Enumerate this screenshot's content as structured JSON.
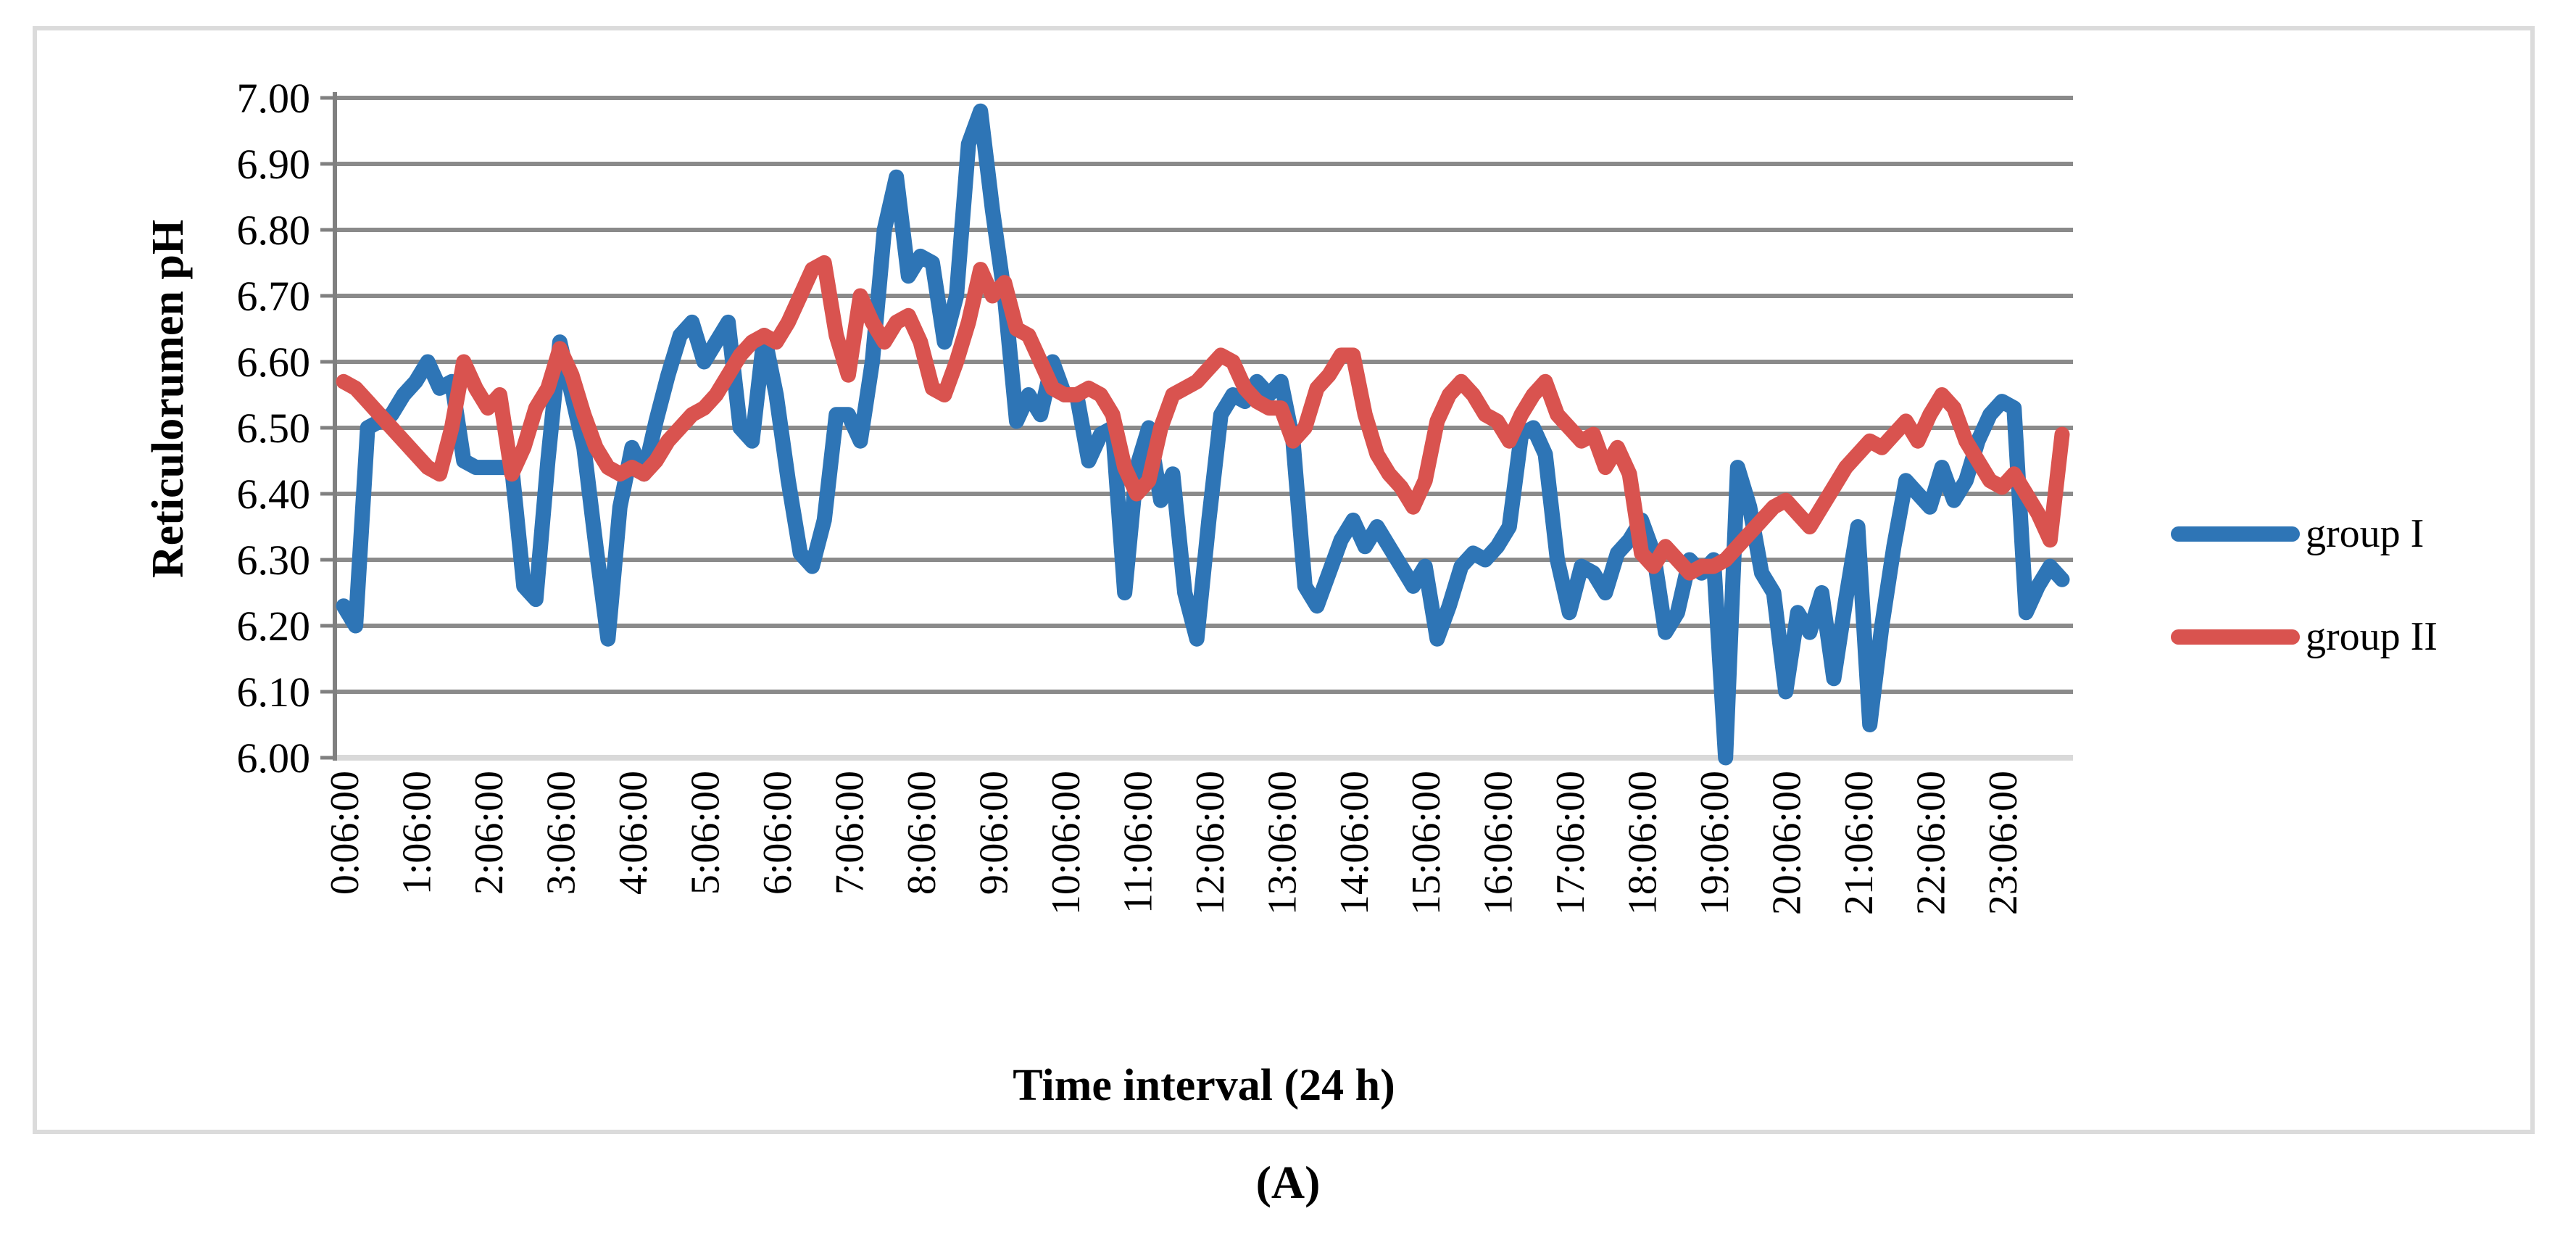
{
  "figure": {
    "caption": "(A)",
    "frame_color": "#dbdbdb",
    "background": "#ffffff"
  },
  "chart_data": {
    "type": "line",
    "title": "",
    "xlabel": "Time interval (24 h)",
    "ylabel": "Reticulorumen pH",
    "ylim": [
      6.0,
      7.0
    ],
    "ytick_step": 0.1,
    "grid": "horizontal",
    "legend_position": "right-middle",
    "axis_colors": {
      "gridline": "#8a8a8a",
      "axis": "#808080",
      "baseline": "#d9d9d9"
    },
    "ytick_labels": [
      "7.00",
      "6.90",
      "6.80",
      "6.70",
      "6.60",
      "6.50",
      "6.40",
      "6.30",
      "6.20",
      "6.10",
      "6.00"
    ],
    "xtick_labels": [
      "0:06:00",
      "1:06:00",
      "2:06:00",
      "3:06:00",
      "4:06:00",
      "5:06:00",
      "6:06:00",
      "7:06:00",
      "8:06:00",
      "9:06:00",
      "10:06:00",
      "11:06:00",
      "12:06:00",
      "13:06:00",
      "14:06:00",
      "15:06:00",
      "16:06:00",
      "17:06:00",
      "18:06:00",
      "19:06:00",
      "20:06:00",
      "21:06:00",
      "22:06:00",
      "23:06:00"
    ],
    "points_per_hour": 6,
    "x_interval_minutes": 10,
    "series": [
      {
        "name": "group I",
        "color": "#2e75b6",
        "values": [
          6.23,
          6.2,
          6.5,
          6.51,
          6.52,
          6.55,
          6.57,
          6.6,
          6.56,
          6.57,
          6.45,
          6.44,
          6.44,
          6.44,
          6.44,
          6.26,
          6.24,
          6.45,
          6.63,
          6.55,
          6.47,
          6.32,
          6.18,
          6.38,
          6.47,
          6.43,
          6.51,
          6.58,
          6.64,
          6.66,
          6.6,
          6.63,
          6.66,
          6.5,
          6.48,
          6.64,
          6.55,
          6.42,
          6.31,
          6.29,
          6.36,
          6.52,
          6.52,
          6.48,
          6.6,
          6.8,
          6.88,
          6.73,
          6.76,
          6.75,
          6.63,
          6.7,
          6.93,
          6.98,
          6.83,
          6.7,
          6.51,
          6.55,
          6.52,
          6.6,
          6.55,
          6.55,
          6.45,
          6.49,
          6.5,
          6.25,
          6.44,
          6.5,
          6.39,
          6.43,
          6.25,
          6.18,
          6.36,
          6.52,
          6.55,
          6.54,
          6.57,
          6.55,
          6.57,
          6.48,
          6.26,
          6.23,
          6.28,
          6.33,
          6.36,
          6.32,
          6.35,
          6.32,
          6.29,
          6.26,
          6.29,
          6.18,
          6.23,
          6.29,
          6.31,
          6.3,
          6.32,
          6.35,
          6.49,
          6.5,
          6.46,
          6.3,
          6.22,
          6.29,
          6.28,
          6.25,
          6.31,
          6.33,
          6.36,
          6.31,
          6.19,
          6.22,
          6.3,
          6.28,
          6.3,
          6.0,
          6.44,
          6.38,
          6.28,
          6.25,
          6.1,
          6.22,
          6.19,
          6.25,
          6.12,
          6.24,
          6.35,
          6.05,
          6.2,
          6.32,
          6.42,
          6.4,
          6.38,
          6.44,
          6.39,
          6.42,
          6.48,
          6.52,
          6.54,
          6.53,
          6.22,
          6.26,
          6.29,
          6.27
        ]
      },
      {
        "name": "group II",
        "color": "#d9534f",
        "values": [
          6.57,
          6.56,
          6.54,
          6.52,
          6.5,
          6.48,
          6.46,
          6.44,
          6.43,
          6.5,
          6.6,
          6.56,
          6.53,
          6.55,
          6.43,
          6.47,
          6.53,
          6.56,
          6.62,
          6.58,
          6.52,
          6.47,
          6.44,
          6.43,
          6.44,
          6.43,
          6.45,
          6.48,
          6.5,
          6.52,
          6.53,
          6.55,
          6.58,
          6.61,
          6.63,
          6.64,
          6.63,
          6.66,
          6.7,
          6.74,
          6.75,
          6.64,
          6.58,
          6.7,
          6.66,
          6.63,
          6.66,
          6.67,
          6.63,
          6.56,
          6.55,
          6.6,
          6.66,
          6.74,
          6.7,
          6.72,
          6.65,
          6.64,
          6.6,
          6.56,
          6.55,
          6.55,
          6.56,
          6.55,
          6.52,
          6.44,
          6.4,
          6.42,
          6.5,
          6.55,
          6.56,
          6.57,
          6.59,
          6.61,
          6.6,
          6.56,
          6.54,
          6.53,
          6.53,
          6.48,
          6.5,
          6.56,
          6.58,
          6.61,
          6.61,
          6.52,
          6.46,
          6.43,
          6.41,
          6.38,
          6.42,
          6.51,
          6.55,
          6.57,
          6.55,
          6.52,
          6.51,
          6.48,
          6.52,
          6.55,
          6.57,
          6.52,
          6.5,
          6.48,
          6.49,
          6.44,
          6.47,
          6.43,
          6.31,
          6.29,
          6.32,
          6.3,
          6.28,
          6.29,
          6.29,
          6.3,
          6.32,
          6.34,
          6.36,
          6.38,
          6.39,
          6.37,
          6.35,
          6.38,
          6.41,
          6.44,
          6.46,
          6.48,
          6.47,
          6.49,
          6.51,
          6.48,
          6.52,
          6.55,
          6.53,
          6.48,
          6.45,
          6.42,
          6.41,
          6.43,
          6.4,
          6.37,
          6.33,
          6.49
        ]
      }
    ]
  }
}
